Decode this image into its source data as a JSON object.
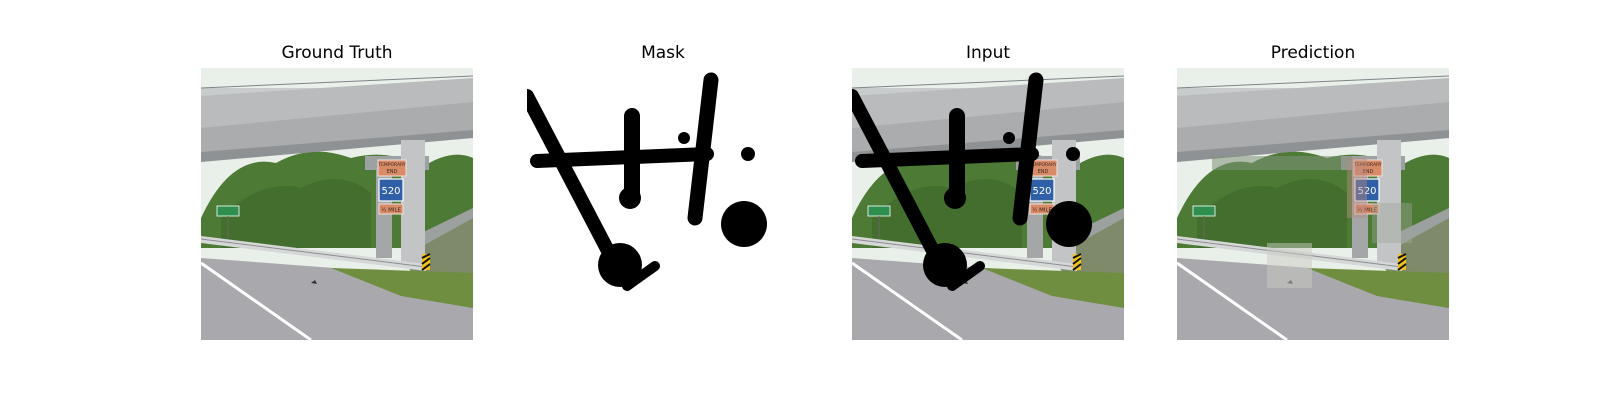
{
  "figure": {
    "panels": [
      {
        "title": "Ground Truth",
        "kind": "ground_truth"
      },
      {
        "title": "Mask",
        "kind": "mask"
      },
      {
        "title": "Input",
        "kind": "input"
      },
      {
        "title": "Prediction",
        "kind": "prediction"
      }
    ]
  },
  "scene": {
    "sign_line_1": "TEMPORARY",
    "sign_line_2": "END",
    "route_number": "520",
    "sign_bottom": "½ MILE"
  },
  "colors": {
    "sky": "#e9efe9",
    "bridge": "#b9bbbc",
    "bridge_dark": "#8f9294",
    "trees": "#4d7a35",
    "road": "#a9a8ad",
    "grass": "#6f8e3f",
    "sign_orange": "#d98a66",
    "sign_blue": "#2f5fa6",
    "mask": "#000000"
  }
}
